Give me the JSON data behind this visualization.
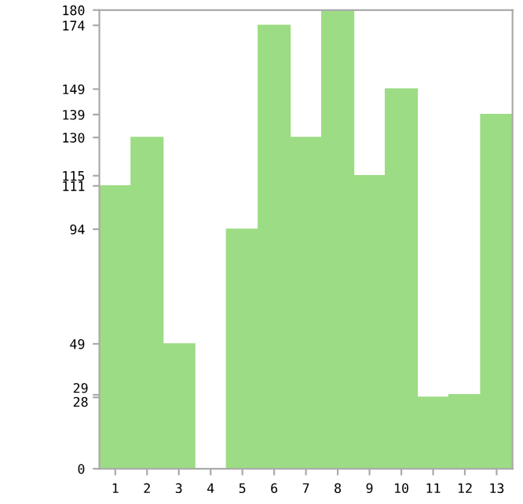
{
  "chart_data": {
    "type": "bar",
    "categories": [
      "1",
      "2",
      "3",
      "4",
      "5",
      "6",
      "7",
      "8",
      "9",
      "10",
      "11",
      "12",
      "13"
    ],
    "values": [
      111,
      130,
      49,
      0,
      94,
      174,
      130,
      180,
      115,
      149,
      28,
      29,
      139
    ],
    "color": "#9cdc84",
    "ylim": [
      0,
      180
    ],
    "yticks": [
      0,
      28,
      29,
      49,
      94,
      111,
      115,
      130,
      139,
      149,
      174,
      180
    ],
    "grid": false
  }
}
